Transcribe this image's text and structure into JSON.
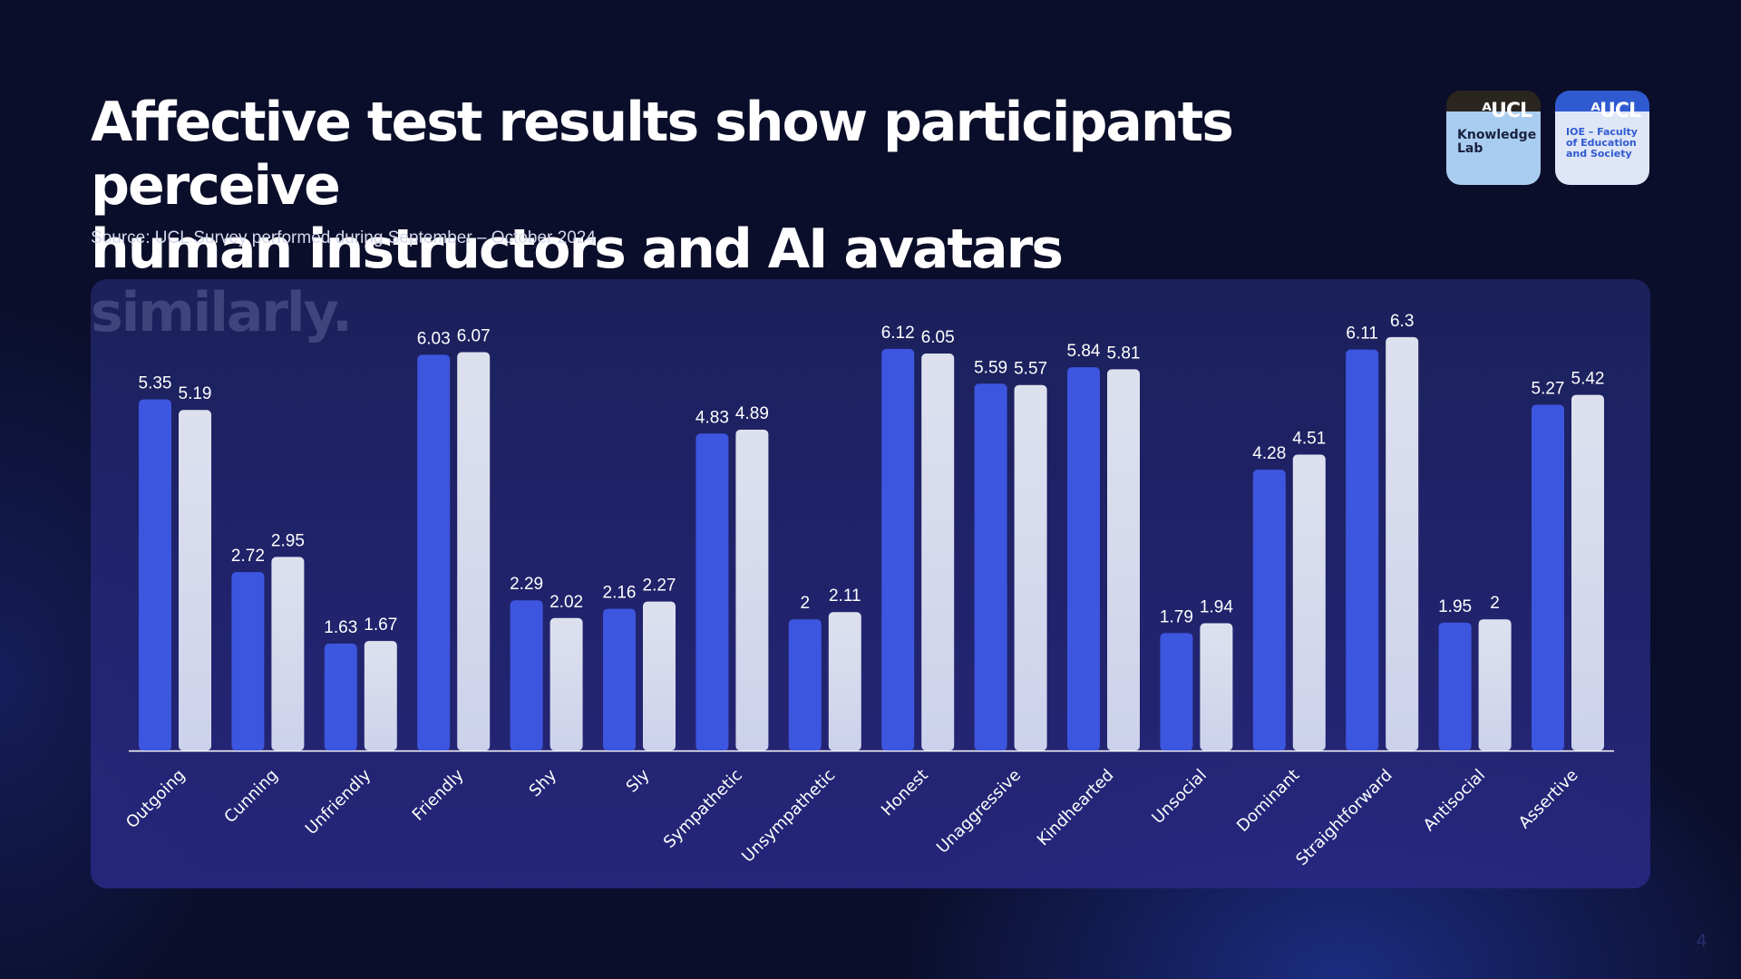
{
  "slide": {
    "title_line1": "Affective test results show participants perceive",
    "title_line2": "human instructors and AI avatars similarly.",
    "source": "Source: UCL Survey performed during September – October 2024",
    "page_number": "4"
  },
  "logos": {
    "knowledge_lab": {
      "mark": "ᴬUCL",
      "text_line1": "Knowledge",
      "text_line2": "Lab"
    },
    "ioe": {
      "mark": "ᴬUCL",
      "text_line1": "IOE – Faculty",
      "text_line2": "of Education",
      "text_line3": "and Society"
    }
  },
  "colors": {
    "series_1": "#3d56e0",
    "series_2": "#d4d9e8",
    "background": "#0b0e2a",
    "text": "#ffffff"
  },
  "chart_data": {
    "type": "bar",
    "title": "",
    "xlabel": "",
    "ylabel": "",
    "ylim": [
      0,
      7
    ],
    "grid": false,
    "categories": [
      "Outgoing",
      "Cunning",
      "Unfriendly",
      "Friendly",
      "Shy",
      "Sly",
      "Sympathetic",
      "Unsympathetic",
      "Honest",
      "Unaggressive",
      "Kindhearted",
      "Unsocial",
      "Dominant",
      "Straightforward",
      "Antisocial",
      "Assertive"
    ],
    "series": [
      {
        "name": "series_1",
        "values": [
          5.35,
          2.72,
          1.63,
          6.03,
          2.29,
          2.16,
          4.83,
          2,
          6.12,
          5.59,
          5.84,
          1.79,
          4.28,
          6.11,
          1.95,
          5.27
        ]
      },
      {
        "name": "series_2",
        "values": [
          5.19,
          2.95,
          1.67,
          6.07,
          2.02,
          2.27,
          4.89,
          2.11,
          6.05,
          5.57,
          5.81,
          1.94,
          4.51,
          6.3,
          2,
          5.42
        ]
      }
    ]
  }
}
